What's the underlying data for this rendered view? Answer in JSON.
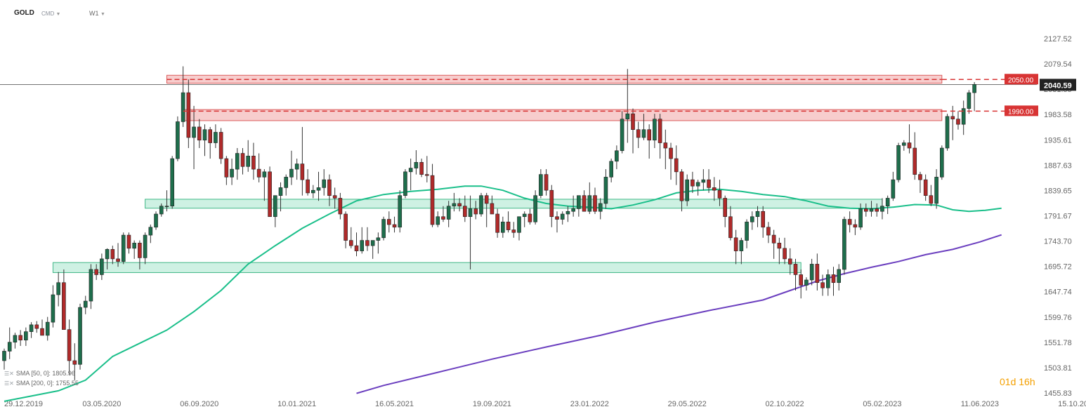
{
  "header": {
    "symbol": "GOLD",
    "market": "CMD",
    "interval": "W1"
  },
  "legend": [
    {
      "label": "SMA [50, 0]: 1805.96",
      "color": "#1abf8a"
    },
    {
      "label": "SMA [200, 0]: 1755.55",
      "color": "#6b3fbf"
    }
  ],
  "countdown": {
    "value": "01d 16h"
  },
  "price_tags": {
    "level_2050": {
      "text": "2050.00",
      "color": "#d83434"
    },
    "level_1990": {
      "text": "1990.00",
      "color": "#d83434"
    },
    "current": {
      "text": "2040.59",
      "color": "#222222"
    }
  },
  "colors": {
    "up_candle": "#1e6e4c",
    "down_candle": "#b02a2a",
    "resistance_zone": "#f7c8c8",
    "support_zone": "#c9f0e0",
    "grid_text": "#666666"
  },
  "chart_data": {
    "type": "candlestick",
    "title": "",
    "xlabel": "",
    "ylabel": "",
    "ylim": [
      1455.83,
      2151.5
    ],
    "yticks": [
      "2127.52",
      "2079.54",
      "2031.55",
      "1983.58",
      "1935.61",
      "1887.63",
      "1839.65",
      "1791.67",
      "1743.70",
      "1695.72",
      "1647.74",
      "1599.76",
      "1551.78",
      "1503.81",
      "1455.83"
    ],
    "xticks": [
      "29.12.2019",
      "03.05.2020",
      "06.09.2020",
      "10.01.2021",
      "16.05.2021",
      "19.09.2021",
      "23.01.2022",
      "29.05.2022",
      "02.10.2022",
      "05.02.2023",
      "11.06.2023",
      "15.10.2023"
    ],
    "x_range_weeks": [
      0,
      197
    ],
    "horizontal_levels": [
      {
        "price": 2050.0,
        "label": "2050.00",
        "style": "dashed",
        "color": "#d83434"
      },
      {
        "price": 1990.0,
        "label": "1990.00",
        "style": "dashed",
        "color": "#d83434"
      },
      {
        "price": 2040.59,
        "label": "2040.59",
        "style": "solid",
        "color": "#222222"
      }
    ],
    "zones": [
      {
        "kind": "resistance",
        "from_week": 30,
        "to_week": 173,
        "low": 2043,
        "high": 2058
      },
      {
        "kind": "resistance",
        "from_week": 33,
        "to_week": 173,
        "low": 1972,
        "high": 1993
      },
      {
        "kind": "support",
        "from_week": 26,
        "to_week": 162,
        "low": 1806,
        "high": 1823
      },
      {
        "kind": "support",
        "from_week": 9,
        "to_week": 147,
        "low": 1684,
        "high": 1703
      }
    ],
    "candles_ohlc": [
      [
        1517,
        1540,
        1500,
        1535
      ],
      [
        1535,
        1580,
        1520,
        1552
      ],
      [
        1552,
        1570,
        1540,
        1565
      ],
      [
        1565,
        1575,
        1545,
        1556
      ],
      [
        1556,
        1580,
        1545,
        1572
      ],
      [
        1572,
        1590,
        1560,
        1585
      ],
      [
        1585,
        1592,
        1570,
        1578
      ],
      [
        1578,
        1595,
        1565,
        1565
      ],
      [
        1565,
        1600,
        1555,
        1590
      ],
      [
        1590,
        1660,
        1580,
        1642
      ],
      [
        1642,
        1685,
        1620,
        1665
      ],
      [
        1665,
        1690,
        1580,
        1576
      ],
      [
        1576,
        1595,
        1490,
        1517
      ],
      [
        1517,
        1550,
        1480,
        1510
      ],
      [
        1510,
        1625,
        1500,
        1618
      ],
      [
        1618,
        1640,
        1605,
        1630
      ],
      [
        1630,
        1700,
        1615,
        1690
      ],
      [
        1690,
        1700,
        1670,
        1680
      ],
      [
        1680,
        1720,
        1670,
        1710
      ],
      [
        1710,
        1730,
        1690,
        1728
      ],
      [
        1728,
        1735,
        1700,
        1710
      ],
      [
        1710,
        1740,
        1695,
        1705
      ],
      [
        1705,
        1760,
        1700,
        1755
      ],
      [
        1755,
        1760,
        1720,
        1730
      ],
      [
        1730,
        1745,
        1710,
        1740
      ],
      [
        1740,
        1745,
        1690,
        1712
      ],
      [
        1712,
        1760,
        1700,
        1755
      ],
      [
        1755,
        1775,
        1740,
        1770
      ],
      [
        1770,
        1800,
        1765,
        1795
      ],
      [
        1795,
        1815,
        1790,
        1810
      ],
      [
        1810,
        1840,
        1800,
        1810
      ],
      [
        1810,
        1905,
        1805,
        1900
      ],
      [
        1900,
        1980,
        1895,
        1970
      ],
      [
        1970,
        2075,
        1960,
        2025
      ],
      [
        2025,
        2050,
        1920,
        1940
      ],
      [
        1940,
        2000,
        1880,
        1960
      ],
      [
        1960,
        1975,
        1920,
        1935
      ],
      [
        1935,
        1965,
        1905,
        1955
      ],
      [
        1955,
        1960,
        1900,
        1930
      ],
      [
        1930,
        1965,
        1920,
        1950
      ],
      [
        1950,
        1958,
        1890,
        1900
      ],
      [
        1900,
        1905,
        1850,
        1865
      ],
      [
        1865,
        1900,
        1850,
        1880
      ],
      [
        1880,
        1920,
        1860,
        1910
      ],
      [
        1910,
        1920,
        1870,
        1885
      ],
      [
        1885,
        1935,
        1875,
        1905
      ],
      [
        1905,
        1930,
        1860,
        1880
      ],
      [
        1880,
        1910,
        1855,
        1865
      ],
      [
        1865,
        1880,
        1820,
        1875
      ],
      [
        1875,
        1885,
        1800,
        1790
      ],
      [
        1790,
        1820,
        1770,
        1830
      ],
      [
        1830,
        1855,
        1800,
        1845
      ],
      [
        1845,
        1870,
        1830,
        1865
      ],
      [
        1865,
        1915,
        1850,
        1880
      ],
      [
        1880,
        1900,
        1860,
        1890
      ],
      [
        1890,
        1960,
        1830,
        1860
      ],
      [
        1860,
        1880,
        1830,
        1835
      ],
      [
        1835,
        1850,
        1825,
        1840
      ],
      [
        1840,
        1875,
        1820,
        1845
      ],
      [
        1845,
        1880,
        1830,
        1860
      ],
      [
        1860,
        1870,
        1810,
        1830
      ],
      [
        1830,
        1845,
        1805,
        1825
      ],
      [
        1825,
        1835,
        1785,
        1795
      ],
      [
        1795,
        1800,
        1730,
        1745
      ],
      [
        1745,
        1770,
        1730,
        1735
      ],
      [
        1735,
        1760,
        1715,
        1725
      ],
      [
        1725,
        1770,
        1720,
        1745
      ],
      [
        1745,
        1770,
        1725,
        1735
      ],
      [
        1735,
        1745,
        1710,
        1745
      ],
      [
        1745,
        1760,
        1720,
        1750
      ],
      [
        1750,
        1790,
        1745,
        1785
      ],
      [
        1785,
        1800,
        1760,
        1775
      ],
      [
        1775,
        1790,
        1760,
        1770
      ],
      [
        1770,
        1840,
        1760,
        1830
      ],
      [
        1830,
        1880,
        1825,
        1875
      ],
      [
        1875,
        1900,
        1840,
        1882
      ],
      [
        1882,
        1916,
        1870,
        1893
      ],
      [
        1893,
        1900,
        1865,
        1870
      ],
      [
        1870,
        1905,
        1855,
        1868
      ],
      [
        1868,
        1890,
        1770,
        1775
      ],
      [
        1775,
        1800,
        1770,
        1790
      ],
      [
        1790,
        1810,
        1780,
        1785
      ],
      [
        1785,
        1820,
        1770,
        1810
      ],
      [
        1810,
        1835,
        1800,
        1815
      ],
      [
        1815,
        1825,
        1800,
        1810
      ],
      [
        1810,
        1830,
        1780,
        1790
      ],
      [
        1790,
        1830,
        1690,
        1805
      ],
      [
        1805,
        1820,
        1785,
        1795
      ],
      [
        1795,
        1835,
        1790,
        1830
      ],
      [
        1830,
        1835,
        1770,
        1815
      ],
      [
        1815,
        1830,
        1800,
        1795
      ],
      [
        1795,
        1805,
        1750,
        1760
      ],
      [
        1760,
        1790,
        1750,
        1780
      ],
      [
        1780,
        1800,
        1760,
        1765
      ],
      [
        1765,
        1780,
        1750,
        1760
      ],
      [
        1760,
        1790,
        1745,
        1790
      ],
      [
        1790,
        1800,
        1770,
        1795
      ],
      [
        1795,
        1805,
        1775,
        1780
      ],
      [
        1780,
        1840,
        1775,
        1830
      ],
      [
        1830,
        1880,
        1825,
        1870
      ],
      [
        1870,
        1880,
        1830,
        1840
      ],
      [
        1840,
        1850,
        1770,
        1790
      ],
      [
        1790,
        1800,
        1760,
        1785
      ],
      [
        1785,
        1800,
        1775,
        1795
      ],
      [
        1795,
        1810,
        1780,
        1800
      ],
      [
        1800,
        1830,
        1790,
        1805
      ],
      [
        1805,
        1830,
        1790,
        1830
      ],
      [
        1830,
        1840,
        1800,
        1800
      ],
      [
        1800,
        1855,
        1795,
        1830
      ],
      [
        1830,
        1845,
        1795,
        1800
      ],
      [
        1800,
        1825,
        1785,
        1815
      ],
      [
        1815,
        1880,
        1805,
        1865
      ],
      [
        1865,
        1900,
        1855,
        1895
      ],
      [
        1895,
        1925,
        1880,
        1915
      ],
      [
        1915,
        1990,
        1910,
        1975
      ],
      [
        1975,
        2070,
        1930,
        1985
      ],
      [
        1985,
        1995,
        1910,
        1955
      ],
      [
        1955,
        1970,
        1920,
        1940
      ],
      [
        1940,
        1985,
        1935,
        1955
      ],
      [
        1955,
        1965,
        1900,
        1935
      ],
      [
        1935,
        1985,
        1920,
        1975
      ],
      [
        1975,
        1985,
        1900,
        1930
      ],
      [
        1930,
        1955,
        1880,
        1920
      ],
      [
        1920,
        1930,
        1860,
        1900
      ],
      [
        1900,
        1925,
        1850,
        1875
      ],
      [
        1875,
        1880,
        1800,
        1820
      ],
      [
        1820,
        1870,
        1810,
        1860
      ],
      [
        1860,
        1875,
        1835,
        1848
      ],
      [
        1848,
        1860,
        1830,
        1855
      ],
      [
        1855,
        1880,
        1840,
        1860
      ],
      [
        1860,
        1880,
        1835,
        1845
      ],
      [
        1845,
        1865,
        1820,
        1840
      ],
      [
        1840,
        1860,
        1810,
        1825
      ],
      [
        1825,
        1830,
        1770,
        1790
      ],
      [
        1790,
        1810,
        1745,
        1750
      ],
      [
        1750,
        1765,
        1700,
        1725
      ],
      [
        1725,
        1750,
        1700,
        1745
      ],
      [
        1745,
        1785,
        1730,
        1780
      ],
      [
        1780,
        1800,
        1765,
        1790
      ],
      [
        1790,
        1810,
        1770,
        1800
      ],
      [
        1800,
        1810,
        1750,
        1770
      ],
      [
        1770,
        1780,
        1740,
        1755
      ],
      [
        1755,
        1765,
        1710,
        1740
      ],
      [
        1740,
        1750,
        1700,
        1730
      ],
      [
        1730,
        1750,
        1700,
        1710
      ],
      [
        1710,
        1730,
        1680,
        1700
      ],
      [
        1700,
        1710,
        1650,
        1680
      ],
      [
        1680,
        1690,
        1635,
        1660
      ],
      [
        1660,
        1675,
        1650,
        1670
      ],
      [
        1670,
        1710,
        1660,
        1700
      ],
      [
        1700,
        1720,
        1650,
        1665
      ],
      [
        1665,
        1680,
        1640,
        1655
      ],
      [
        1655,
        1690,
        1640,
        1680
      ],
      [
        1680,
        1695,
        1640,
        1665
      ],
      [
        1665,
        1700,
        1650,
        1690
      ],
      [
        1690,
        1790,
        1680,
        1785
      ],
      [
        1785,
        1800,
        1760,
        1775
      ],
      [
        1775,
        1785,
        1755,
        1770
      ],
      [
        1770,
        1815,
        1765,
        1805
      ],
      [
        1805,
        1815,
        1790,
        1800
      ],
      [
        1800,
        1820,
        1790,
        1805
      ],
      [
        1805,
        1815,
        1790,
        1800
      ],
      [
        1800,
        1825,
        1785,
        1810
      ],
      [
        1810,
        1830,
        1795,
        1825
      ],
      [
        1825,
        1875,
        1820,
        1860
      ],
      [
        1860,
        1930,
        1855,
        1925
      ],
      [
        1925,
        1935,
        1915,
        1930
      ],
      [
        1930,
        1965,
        1910,
        1920
      ],
      [
        1920,
        1950,
        1860,
        1870
      ],
      [
        1870,
        1875,
        1835,
        1860
      ],
      [
        1860,
        1870,
        1820,
        1830
      ],
      [
        1830,
        1850,
        1810,
        1815
      ],
      [
        1815,
        1880,
        1805,
        1865
      ],
      [
        1865,
        1925,
        1860,
        1920
      ],
      [
        1920,
        1985,
        1915,
        1980
      ],
      [
        1980,
        2000,
        1935,
        1975
      ],
      [
        1975,
        1990,
        1955,
        1965
      ],
      [
        1965,
        2010,
        1945,
        1995
      ],
      [
        1995,
        2030,
        1985,
        2025
      ],
      [
        2025,
        2045,
        1990,
        2040.59
      ]
    ],
    "series": [
      {
        "name": "SMA [50, 0]",
        "color": "#1abf8a",
        "points": [
          [
            0,
            1440
          ],
          [
            10,
            1460
          ],
          [
            15,
            1480
          ],
          [
            20,
            1525
          ],
          [
            25,
            1550
          ],
          [
            30,
            1575
          ],
          [
            35,
            1610
          ],
          [
            40,
            1650
          ],
          [
            45,
            1700
          ],
          [
            50,
            1735
          ],
          [
            55,
            1768
          ],
          [
            60,
            1795
          ],
          [
            65,
            1820
          ],
          [
            70,
            1832
          ],
          [
            75,
            1838
          ],
          [
            80,
            1842
          ],
          [
            85,
            1848
          ],
          [
            88,
            1848
          ],
          [
            92,
            1840
          ],
          [
            96,
            1825
          ],
          [
            100,
            1815
          ],
          [
            104,
            1810
          ],
          [
            108,
            1808
          ],
          [
            112,
            1805
          ],
          [
            116,
            1812
          ],
          [
            120,
            1822
          ],
          [
            124,
            1835
          ],
          [
            128,
            1840
          ],
          [
            132,
            1842
          ],
          [
            136,
            1838
          ],
          [
            140,
            1832
          ],
          [
            144,
            1828
          ],
          [
            148,
            1820
          ],
          [
            152,
            1810
          ],
          [
            156,
            1806
          ],
          [
            160,
            1805
          ],
          [
            164,
            1808
          ],
          [
            168,
            1813
          ],
          [
            172,
            1812
          ],
          [
            175,
            1803
          ],
          [
            178,
            1800
          ],
          [
            181,
            1802
          ],
          [
            184,
            1806
          ]
        ]
      },
      {
        "name": "SMA [200, 0]",
        "color": "#6b3fbf",
        "points": [
          [
            65,
            1455
          ],
          [
            70,
            1470
          ],
          [
            80,
            1495
          ],
          [
            90,
            1520
          ],
          [
            100,
            1543
          ],
          [
            110,
            1565
          ],
          [
            120,
            1590
          ],
          [
            130,
            1612
          ],
          [
            140,
            1632
          ],
          [
            145,
            1650
          ],
          [
            150,
            1668
          ],
          [
            155,
            1682
          ],
          [
            160,
            1694
          ],
          [
            165,
            1705
          ],
          [
            170,
            1718
          ],
          [
            175,
            1728
          ],
          [
            180,
            1742
          ],
          [
            184,
            1755.55
          ]
        ]
      }
    ]
  }
}
